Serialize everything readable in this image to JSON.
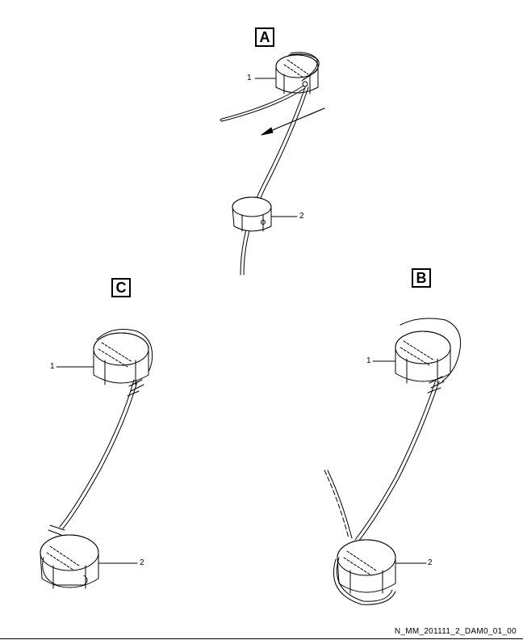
{
  "panels": {
    "a": {
      "label": "A"
    },
    "b": {
      "label": "B"
    },
    "c": {
      "label": "C"
    }
  },
  "callouts": {
    "cap1": "1",
    "cap2": "2"
  },
  "footer": {
    "code": "N_MM_201111_2_DAM0_01_00"
  }
}
